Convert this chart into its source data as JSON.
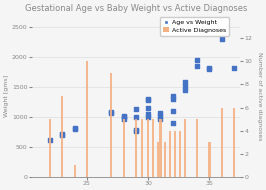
{
  "title": "Gestational Age vs Baby Weight vs Active Diagnoses",
  "ylabel_left": "Weight [gms]",
  "ylabel_right": "Number of active diagnoses",
  "xlim": [
    20.5,
    37.5
  ],
  "ylim_left": [
    0,
    2700
  ],
  "ylim_right": [
    0,
    14
  ],
  "xticks": [
    25,
    30,
    35
  ],
  "yticks_left": [
    0,
    500,
    1000,
    1500,
    2000,
    2500
  ],
  "yticks_right": [
    0,
    2,
    4,
    6,
    8,
    10,
    12
  ],
  "scatter_x": [
    22,
    23,
    23,
    24,
    24,
    27,
    27,
    28,
    28,
    28,
    29,
    29,
    29,
    29,
    30,
    30,
    30,
    30,
    30,
    31,
    31,
    31,
    32,
    32,
    32,
    32,
    33,
    33,
    33,
    34,
    34,
    35,
    35,
    36,
    37
  ],
  "scatter_y": [
    610,
    700,
    720,
    800,
    820,
    1060,
    1080,
    960,
    1000,
    1020,
    770,
    780,
    1000,
    1130,
    1000,
    1050,
    1150,
    1280,
    1300,
    960,
    1010,
    1060,
    900,
    1100,
    1300,
    1350,
    1450,
    1520,
    1580,
    1850,
    1960,
    1800,
    1820,
    2300,
    1820
  ],
  "bar_x": [
    22,
    23,
    24,
    25,
    27,
    28,
    29,
    29.5,
    30,
    30.4,
    30.8,
    31,
    31.4,
    31.8,
    32.2,
    32.6,
    33,
    34,
    35,
    36,
    37
  ],
  "bar_heights": [
    5,
    7,
    1,
    10,
    9,
    5,
    5,
    5,
    5,
    5,
    3,
    5,
    3,
    4,
    4,
    4,
    5,
    5,
    3,
    6,
    6
  ],
  "scatter_color": "#4472c4",
  "bar_color": "#f4b183",
  "legend_scatter": "Age vs Weight",
  "legend_bar": "Active Diagnoses",
  "background_color": "#f5f5f5",
  "grid_color": "#d8d8d8",
  "title_fontsize": 6,
  "label_fontsize": 4.5,
  "tick_fontsize": 4.5,
  "legend_fontsize": 4.5
}
